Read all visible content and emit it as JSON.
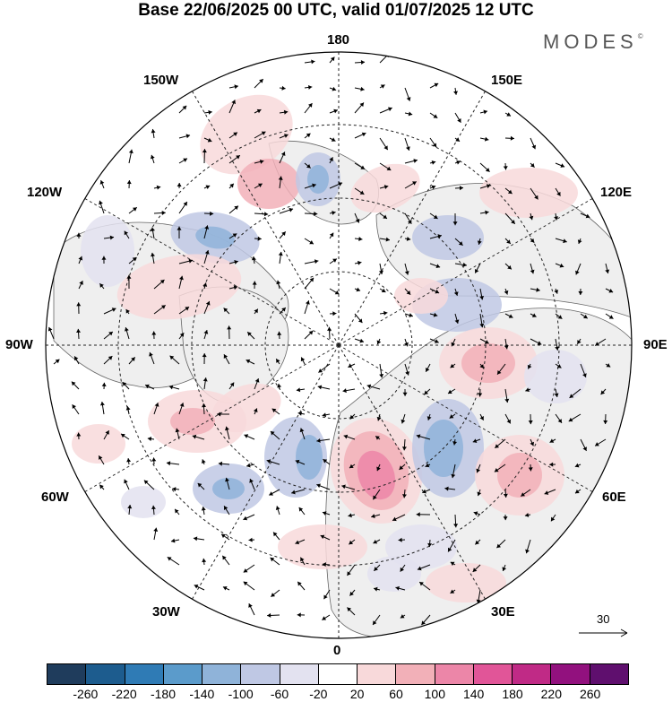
{
  "title": "Base 22/06/2025 00 UTC, valid 01/07/2025 12 UTC",
  "brand": "MODES",
  "brand_mark": "©",
  "longitude_labels": {
    "top": "180",
    "bottom": "0",
    "left": "90W",
    "right": "90E",
    "upper_left_1": "150W",
    "upper_left_2": "120W",
    "upper_right_1": "150E",
    "upper_right_2": "120E",
    "lower_left_1": "60W",
    "lower_left_2": "30W",
    "lower_right_1": "60E",
    "lower_right_2": "30E"
  },
  "reference_vector": {
    "value": "30"
  },
  "colorbar": {
    "colors": [
      "#1f3c5c",
      "#1d5c8e",
      "#2f7bb5",
      "#5b9bcb",
      "#8fb3d9",
      "#bfc8e4",
      "#e3e2f0",
      "#ffffff",
      "#f8d9da",
      "#f2b0b8",
      "#ec86a8",
      "#e15598",
      "#c02a86",
      "#92117e",
      "#5f0f6e"
    ],
    "ticks": [
      "-260",
      "-220",
      "-180",
      "-140",
      "-100",
      "-60",
      "-20",
      "20",
      "60",
      "100",
      "140",
      "180",
      "220",
      "260"
    ]
  },
  "map_colors": {
    "land_gray": "#efefef",
    "ocean": "#ffffff",
    "coast": "#666666"
  }
}
